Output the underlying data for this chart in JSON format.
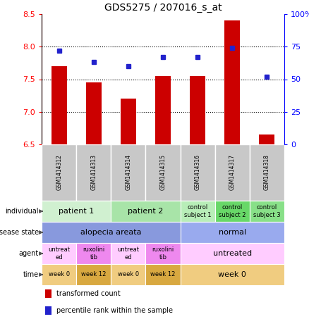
{
  "title": "GDS5275 / 207016_s_at",
  "samples": [
    "GSM1414312",
    "GSM1414313",
    "GSM1414314",
    "GSM1414315",
    "GSM1414316",
    "GSM1414317",
    "GSM1414318"
  ],
  "bar_values": [
    7.7,
    7.45,
    7.2,
    7.55,
    7.55,
    8.4,
    6.65
  ],
  "dot_values": [
    72,
    63,
    60,
    67,
    67,
    74,
    52
  ],
  "ylim_left": [
    6.5,
    8.5
  ],
  "ylim_right": [
    0,
    100
  ],
  "yticks_left": [
    6.5,
    7.0,
    7.5,
    8.0,
    8.5
  ],
  "yticks_right": [
    0,
    25,
    50,
    75,
    100
  ],
  "bar_color": "#cc0000",
  "dot_color": "#2222cc",
  "bar_bottom": 6.5,
  "annotation_rows": [
    {
      "label": "individual",
      "cells": [
        {
          "text": "patient 1",
          "span": [
            0,
            2
          ],
          "color": "#d0f0d0",
          "fontsize": 8
        },
        {
          "text": "patient 2",
          "span": [
            2,
            4
          ],
          "color": "#a8e4a8",
          "fontsize": 8
        },
        {
          "text": "control\nsubject 1",
          "span": [
            4,
            5
          ],
          "color": "#b8eeb8",
          "fontsize": 6
        },
        {
          "text": "control\nsubject 2",
          "span": [
            5,
            6
          ],
          "color": "#68d868",
          "fontsize": 6
        },
        {
          "text": "control\nsubject 3",
          "span": [
            6,
            7
          ],
          "color": "#88e088",
          "fontsize": 6
        }
      ]
    },
    {
      "label": "disease state",
      "cells": [
        {
          "text": "alopecia areata",
          "span": [
            0,
            4
          ],
          "color": "#8899dd",
          "fontsize": 8
        },
        {
          "text": "normal",
          "span": [
            4,
            7
          ],
          "color": "#99aaee",
          "fontsize": 8
        }
      ]
    },
    {
      "label": "agent",
      "cells": [
        {
          "text": "untreat\ned",
          "span": [
            0,
            1
          ],
          "color": "#ffccff",
          "fontsize": 6
        },
        {
          "text": "ruxolini\ntib",
          "span": [
            1,
            2
          ],
          "color": "#ee88ee",
          "fontsize": 6
        },
        {
          "text": "untreat\ned",
          "span": [
            2,
            3
          ],
          "color": "#ffccff",
          "fontsize": 6
        },
        {
          "text": "ruxolini\ntib",
          "span": [
            3,
            4
          ],
          "color": "#ee88ee",
          "fontsize": 6
        },
        {
          "text": "untreated",
          "span": [
            4,
            7
          ],
          "color": "#ffccff",
          "fontsize": 8
        }
      ]
    },
    {
      "label": "time",
      "cells": [
        {
          "text": "week 0",
          "span": [
            0,
            1
          ],
          "color": "#f0cc80",
          "fontsize": 6
        },
        {
          "text": "week 12",
          "span": [
            1,
            2
          ],
          "color": "#d8a840",
          "fontsize": 6
        },
        {
          "text": "week 0",
          "span": [
            2,
            3
          ],
          "color": "#f0cc80",
          "fontsize": 6
        },
        {
          "text": "week 12",
          "span": [
            3,
            4
          ],
          "color": "#d8a840",
          "fontsize": 6
        },
        {
          "text": "week 0",
          "span": [
            4,
            7
          ],
          "color": "#f0cc80",
          "fontsize": 8
        }
      ]
    }
  ],
  "legend_items": [
    {
      "color": "#cc0000",
      "label": "transformed count"
    },
    {
      "color": "#2222cc",
      "label": "percentile rank within the sample"
    }
  ],
  "sample_label_color": "#c8c8c8",
  "title_fontsize": 10
}
